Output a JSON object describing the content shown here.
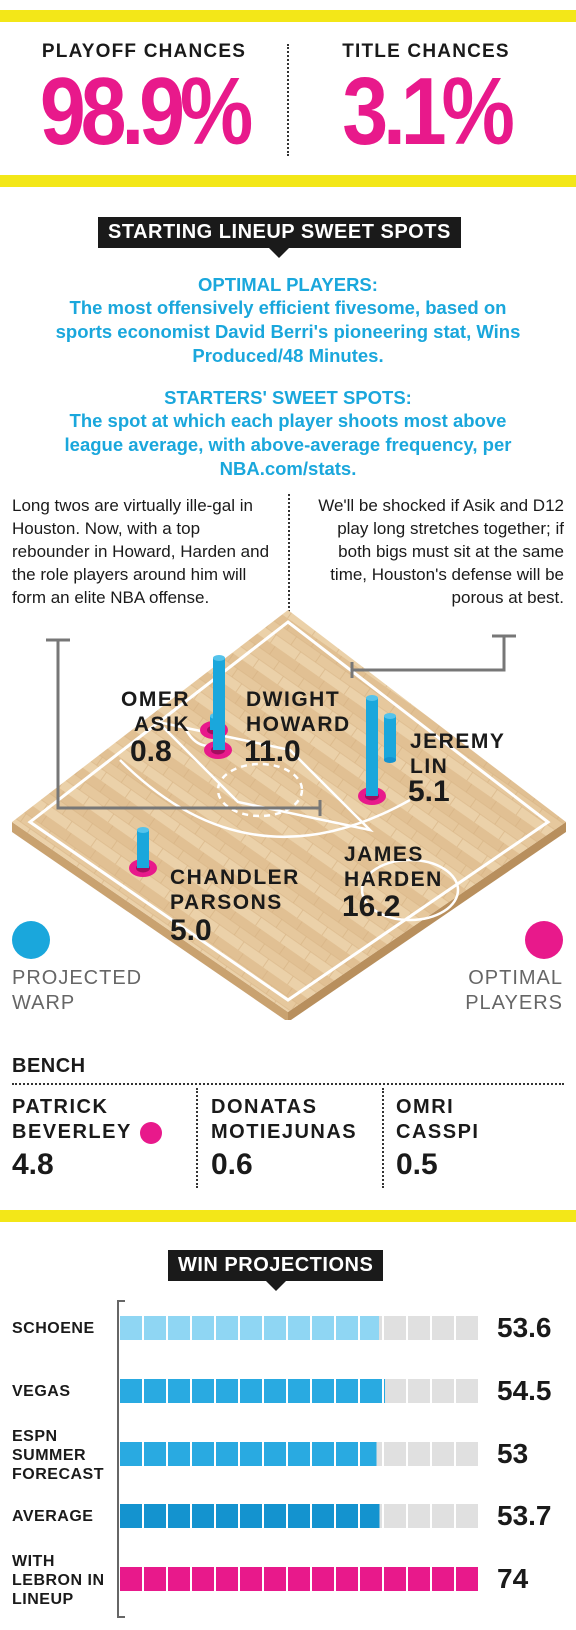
{
  "chances": {
    "playoff_label": "PLAYOFF CHANCES",
    "playoff_value": "98.9%",
    "title_label": "TITLE CHANCES",
    "title_value": "3.1%"
  },
  "lineup": {
    "heading": "STARTING LINEUP SWEET SPOTS",
    "optimal_title": "OPTIMAL PLAYERS:",
    "optimal_desc": "The most offensively efficient fivesome, based on sports economist David Berri's pioneering stat, Wins Produced/48 Minutes.",
    "sweet_title": "STARTERS' SWEET SPOTS:",
    "sweet_desc": "The spot at which each player shoots most above league average, with above-average frequency, per NBA.com/stats.",
    "note_left": "Long twos are virtually ille-gal in Houston. Now, with a top rebounder in Howard, Harden and the role players around him will form an elite NBA offense.",
    "note_right": "We'll be shocked if Asik and D12 play long stretches together; if both bigs must sit at the same time, Houston's defense will be porous at best.",
    "players": [
      {
        "first": "OMER",
        "last": "ASIK",
        "warp": "0.8",
        "warp_num": 0.8,
        "optimal": true
      },
      {
        "first": "DWIGHT",
        "last": "HOWARD",
        "warp": "11.0",
        "warp_num": 11.0,
        "optimal": true
      },
      {
        "first": "JEREMY",
        "last": "LIN",
        "warp": "5.1",
        "warp_num": 5.1,
        "optimal": false
      },
      {
        "first": "JAMES",
        "last": "HARDEN",
        "warp": "16.2",
        "warp_num": 16.2,
        "optimal": true
      },
      {
        "first": "CHANDLER",
        "last": "PARSONS",
        "warp": "5.0",
        "warp_num": 5.0,
        "optimal": true
      }
    ],
    "legend": {
      "warp_l1": "PROJECTED",
      "warp_l2": "WARP",
      "warp_color": "#1aa7dc",
      "optimal_l1": "OPTIMAL",
      "optimal_l2": "PLAYERS",
      "optimal_color": "#e8198b"
    }
  },
  "bench": {
    "heading": "BENCH",
    "players": [
      {
        "first": "PATRICK",
        "last": "BEVERLEY",
        "warp": "4.8",
        "optimal": true
      },
      {
        "first": "DONATAS",
        "last": "MOTIEJUNAS",
        "warp": "0.6",
        "optimal": false
      },
      {
        "first": "OMRI",
        "last": "CASSPI",
        "warp": "0.5",
        "optimal": false
      }
    ]
  },
  "projections": {
    "heading": "WIN PROJECTIONS",
    "rows": [
      {
        "label": "SCHOENE",
        "value": "53.6",
        "wins": 53.6
      },
      {
        "label": "VEGAS",
        "value": "54.5",
        "wins": 54.5
      },
      {
        "label": "ESPN SUMMER FORECAST",
        "value": "53",
        "wins": 53
      },
      {
        "label": "AVERAGE",
        "value": "53.7",
        "wins": 53.7
      },
      {
        "label": "WITH LEBRON IN LINEUP",
        "value": "74",
        "wins": 74
      }
    ],
    "scale_max_wins": 74,
    "colors": {
      "schoene": "#8fd6f3",
      "vegas": "#29aae1",
      "espn": "#29aae1",
      "average": "#1493cf",
      "lebron": "#e8198b",
      "empty": "#e0e0e0"
    }
  }
}
